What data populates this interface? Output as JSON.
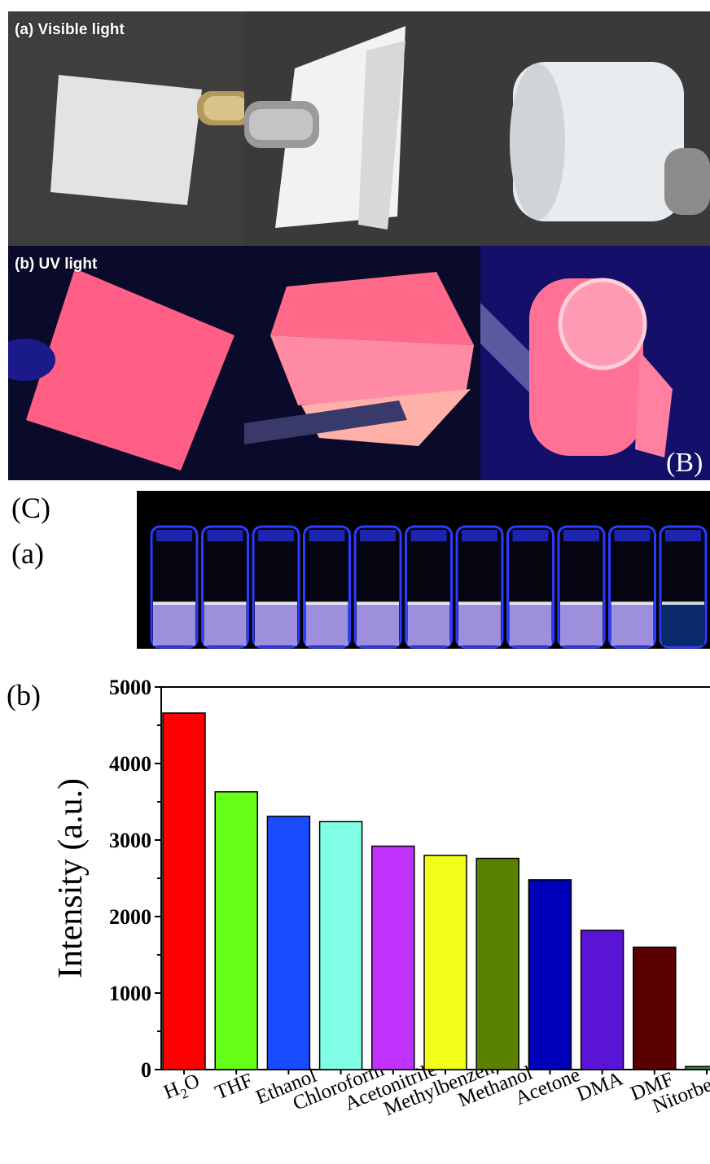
{
  "panel_B": {
    "row_a_caption": "(a) Visible light",
    "row_b_caption": "(b) UV light",
    "label": "(B)"
  },
  "panel_C": {
    "label": "(C)",
    "sub_a_label": "(a)",
    "sub_b_label": "(b)"
  },
  "chart_data": {
    "type": "bar",
    "categories": [
      "H2O",
      "THF",
      "Ethanol",
      "Chloroform",
      "Acetonitrile",
      "Methylbenzene",
      "Methanol",
      "Acetone",
      "DMA",
      "DMF",
      "Nitorbenzene"
    ],
    "values": [
      4660,
      3630,
      3310,
      3240,
      2920,
      2800,
      2760,
      2480,
      1820,
      1600,
      40
    ],
    "colors": [
      "#ff0000",
      "#66ff1a",
      "#1a4cff",
      "#80ffe6",
      "#c033ff",
      "#f2ff1a",
      "#5a8200",
      "#0000b8",
      "#5a14d6",
      "#5a0000",
      "#1e8a3c"
    ],
    "xlabel": "",
    "ylabel": "Intensity (a.u.)",
    "ylim": [
      0,
      5000
    ],
    "yticks": [
      0,
      1000,
      2000,
      3000,
      4000,
      5000
    ]
  }
}
